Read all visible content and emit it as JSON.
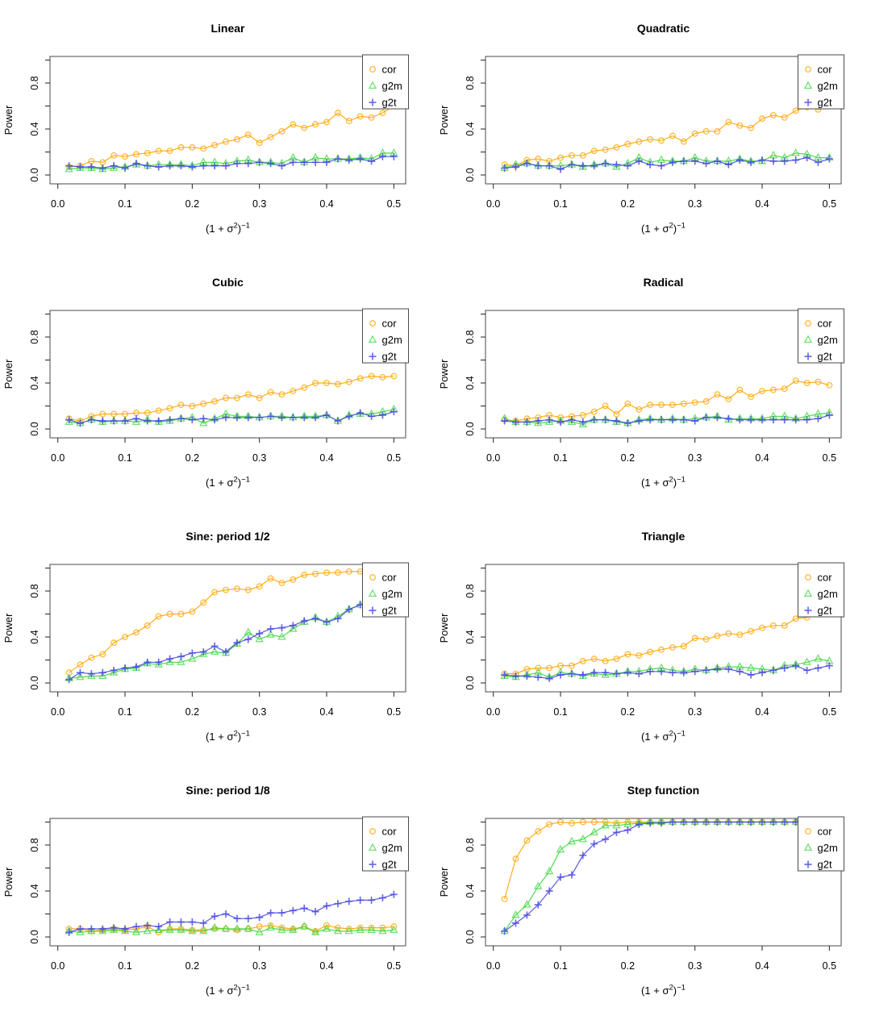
{
  "page": {
    "background": "#ffffff"
  },
  "chart_data": {
    "type": "line",
    "x_label": "(1 + σ²)⁻¹",
    "x_label_parts": [
      {
        "t": "(",
        "sup": false
      },
      {
        "t": "1",
        "sup": false
      },
      {
        "t": " + ",
        "sup": false
      },
      {
        "t": "σ",
        "sup": false
      },
      {
        "t": "2",
        "sup": true
      },
      {
        "t": ")",
        "sup": false
      },
      {
        "t": "−1",
        "sup": true
      }
    ],
    "y_label": "Power",
    "xlim": [
      0,
      0.5
    ],
    "ylim": [
      0,
      1
    ],
    "grid": false,
    "x_ticks": [
      {
        "v": 0.0,
        "label": "0.0"
      },
      {
        "v": 0.1,
        "label": "0.1"
      },
      {
        "v": 0.2,
        "label": "0.2"
      },
      {
        "v": 0.3,
        "label": "0.3"
      },
      {
        "v": 0.4,
        "label": "0.4"
      },
      {
        "v": 0.5,
        "label": "0.5"
      }
    ],
    "y_ticks": [
      {
        "v": 0.0,
        "label": "0.0"
      },
      {
        "v": 0.2,
        "label": ""
      },
      {
        "v": 0.4,
        "label": "0.4"
      },
      {
        "v": 0.6,
        "label": ""
      },
      {
        "v": 0.8,
        "label": "0.8"
      },
      {
        "v": 1.0,
        "label": ""
      }
    ],
    "legend": {
      "position": "top-right",
      "entries": [
        {
          "name": "cor",
          "marker": "circle",
          "color": "#ffa500"
        },
        {
          "name": "g2m",
          "marker": "triangle",
          "color": "#3bd53b"
        },
        {
          "name": "g2t",
          "marker": "plus",
          "color": "#4747e0"
        }
      ]
    },
    "x_values": [
      0.0167,
      0.0333,
      0.05,
      0.0667,
      0.0833,
      0.1,
      0.1167,
      0.1333,
      0.15,
      0.1667,
      0.1833,
      0.2,
      0.2167,
      0.2333,
      0.25,
      0.2667,
      0.2833,
      0.3,
      0.3167,
      0.3333,
      0.35,
      0.3667,
      0.3833,
      0.4,
      0.4167,
      0.4333,
      0.45,
      0.4667,
      0.4833,
      0.5
    ],
    "panels": [
      {
        "title": "Linear",
        "series": {
          "cor": [
            0.07,
            0.08,
            0.12,
            0.11,
            0.17,
            0.16,
            0.18,
            0.19,
            0.21,
            0.21,
            0.24,
            0.24,
            0.23,
            0.26,
            0.29,
            0.31,
            0.35,
            0.28,
            0.33,
            0.38,
            0.44,
            0.41,
            0.44,
            0.46,
            0.54,
            0.47,
            0.51,
            0.5,
            0.54,
            0.6
          ],
          "g2m": [
            0.05,
            0.06,
            0.06,
            0.05,
            0.06,
            0.07,
            0.09,
            0.08,
            0.09,
            0.09,
            0.09,
            0.08,
            0.11,
            0.11,
            0.1,
            0.12,
            0.13,
            0.11,
            0.11,
            0.1,
            0.15,
            0.11,
            0.15,
            0.14,
            0.14,
            0.14,
            0.15,
            0.14,
            0.19,
            0.19
          ],
          "g2t": [
            0.08,
            0.07,
            0.07,
            0.06,
            0.08,
            0.06,
            0.1,
            0.08,
            0.07,
            0.08,
            0.08,
            0.07,
            0.08,
            0.08,
            0.08,
            0.1,
            0.1,
            0.11,
            0.1,
            0.08,
            0.11,
            0.11,
            0.11,
            0.11,
            0.14,
            0.13,
            0.14,
            0.12,
            0.16,
            0.16
          ]
        }
      },
      {
        "title": "Quadratic",
        "series": {
          "cor": [
            0.09,
            0.08,
            0.13,
            0.14,
            0.12,
            0.15,
            0.17,
            0.17,
            0.21,
            0.22,
            0.24,
            0.27,
            0.29,
            0.31,
            0.3,
            0.34,
            0.29,
            0.36,
            0.38,
            0.38,
            0.46,
            0.43,
            0.41,
            0.49,
            0.52,
            0.5,
            0.56,
            0.59,
            0.57,
            0.6
          ],
          "g2m": [
            0.06,
            0.09,
            0.1,
            0.08,
            0.08,
            0.08,
            0.09,
            0.07,
            0.09,
            0.1,
            0.07,
            0.1,
            0.15,
            0.11,
            0.13,
            0.12,
            0.12,
            0.15,
            0.12,
            0.12,
            0.12,
            0.14,
            0.12,
            0.12,
            0.17,
            0.15,
            0.19,
            0.18,
            0.15,
            0.15
          ],
          "g2t": [
            0.06,
            0.07,
            0.1,
            0.08,
            0.08,
            0.05,
            0.09,
            0.08,
            0.08,
            0.1,
            0.09,
            0.08,
            0.12,
            0.09,
            0.08,
            0.11,
            0.12,
            0.12,
            0.1,
            0.12,
            0.09,
            0.13,
            0.11,
            0.13,
            0.12,
            0.12,
            0.13,
            0.15,
            0.11,
            0.14
          ]
        }
      },
      {
        "title": "Cubic",
        "series": {
          "cor": [
            0.09,
            0.07,
            0.11,
            0.13,
            0.13,
            0.13,
            0.14,
            0.14,
            0.16,
            0.18,
            0.21,
            0.2,
            0.22,
            0.24,
            0.27,
            0.27,
            0.3,
            0.27,
            0.32,
            0.3,
            0.33,
            0.36,
            0.4,
            0.4,
            0.39,
            0.41,
            0.44,
            0.46,
            0.45,
            0.46
          ],
          "g2m": [
            0.06,
            0.05,
            0.08,
            0.06,
            0.07,
            0.07,
            0.06,
            0.08,
            0.06,
            0.07,
            0.09,
            0.1,
            0.05,
            0.09,
            0.13,
            0.11,
            0.11,
            0.1,
            0.11,
            0.11,
            0.1,
            0.11,
            0.11,
            0.12,
            0.07,
            0.12,
            0.13,
            0.13,
            0.15,
            0.17
          ],
          "g2t": [
            0.08,
            0.05,
            0.08,
            0.07,
            0.07,
            0.07,
            0.09,
            0.07,
            0.07,
            0.08,
            0.09,
            0.08,
            0.09,
            0.08,
            0.1,
            0.1,
            0.1,
            0.1,
            0.11,
            0.1,
            0.1,
            0.1,
            0.1,
            0.12,
            0.07,
            0.11,
            0.14,
            0.11,
            0.12,
            0.15
          ]
        }
      },
      {
        "title": "Radical",
        "series": {
          "cor": [
            0.08,
            0.07,
            0.09,
            0.1,
            0.12,
            0.1,
            0.11,
            0.12,
            0.15,
            0.2,
            0.13,
            0.22,
            0.17,
            0.21,
            0.21,
            0.21,
            0.22,
            0.23,
            0.24,
            0.3,
            0.26,
            0.34,
            0.28,
            0.33,
            0.34,
            0.35,
            0.42,
            0.4,
            0.41,
            0.38
          ],
          "g2m": [
            0.09,
            0.06,
            0.06,
            0.05,
            0.06,
            0.07,
            0.06,
            0.04,
            0.08,
            0.08,
            0.06,
            0.05,
            0.08,
            0.09,
            0.08,
            0.09,
            0.08,
            0.09,
            0.1,
            0.11,
            0.08,
            0.09,
            0.09,
            0.09,
            0.11,
            0.11,
            0.09,
            0.11,
            0.13,
            0.14
          ],
          "g2t": [
            0.07,
            0.06,
            0.06,
            0.07,
            0.08,
            0.06,
            0.08,
            0.06,
            0.08,
            0.08,
            0.07,
            0.05,
            0.07,
            0.08,
            0.08,
            0.08,
            0.08,
            0.07,
            0.1,
            0.1,
            0.09,
            0.08,
            0.08,
            0.08,
            0.08,
            0.08,
            0.08,
            0.08,
            0.09,
            0.12
          ]
        }
      },
      {
        "title": "Sine: period 1/2",
        "series": {
          "cor": [
            0.09,
            0.16,
            0.22,
            0.25,
            0.35,
            0.4,
            0.44,
            0.5,
            0.58,
            0.6,
            0.6,
            0.62,
            0.7,
            0.79,
            0.81,
            0.82,
            0.81,
            0.84,
            0.91,
            0.87,
            0.9,
            0.94,
            0.95,
            0.96,
            0.96,
            0.97,
            0.97,
            0.97,
            0.97,
            0.97
          ],
          "g2m": [
            0.04,
            0.05,
            0.06,
            0.06,
            0.09,
            0.12,
            0.13,
            0.17,
            0.16,
            0.18,
            0.18,
            0.21,
            0.25,
            0.27,
            0.26,
            0.34,
            0.44,
            0.38,
            0.42,
            0.4,
            0.47,
            0.53,
            0.57,
            0.53,
            0.58,
            0.64,
            0.68,
            0.7,
            0.71,
            0.72
          ],
          "g2t": [
            0.03,
            0.09,
            0.08,
            0.09,
            0.11,
            0.13,
            0.14,
            0.18,
            0.18,
            0.21,
            0.23,
            0.26,
            0.27,
            0.32,
            0.27,
            0.35,
            0.38,
            0.43,
            0.47,
            0.48,
            0.5,
            0.54,
            0.56,
            0.53,
            0.56,
            0.64,
            0.68,
            0.69,
            0.71,
            0.72
          ]
        }
      },
      {
        "title": "Triangle",
        "series": {
          "cor": [
            0.08,
            0.08,
            0.12,
            0.13,
            0.13,
            0.15,
            0.15,
            0.19,
            0.21,
            0.19,
            0.21,
            0.25,
            0.24,
            0.27,
            0.29,
            0.31,
            0.32,
            0.39,
            0.38,
            0.41,
            0.43,
            0.42,
            0.45,
            0.48,
            0.5,
            0.5,
            0.56,
            0.57,
            0.6,
            0.62
          ],
          "g2m": [
            0.06,
            0.05,
            0.07,
            0.09,
            0.05,
            0.09,
            0.08,
            0.06,
            0.08,
            0.07,
            0.08,
            0.1,
            0.1,
            0.12,
            0.13,
            0.11,
            0.1,
            0.12,
            0.11,
            0.13,
            0.14,
            0.14,
            0.13,
            0.12,
            0.11,
            0.15,
            0.16,
            0.18,
            0.21,
            0.19
          ],
          "g2t": [
            0.07,
            0.06,
            0.06,
            0.05,
            0.04,
            0.07,
            0.08,
            0.07,
            0.09,
            0.09,
            0.08,
            0.09,
            0.08,
            0.1,
            0.1,
            0.09,
            0.09,
            0.1,
            0.11,
            0.12,
            0.12,
            0.1,
            0.07,
            0.09,
            0.11,
            0.13,
            0.15,
            0.11,
            0.13,
            0.15
          ]
        }
      },
      {
        "title": "Sine: period 1/8",
        "series": {
          "cor": [
            0.07,
            0.07,
            0.05,
            0.06,
            0.07,
            0.06,
            0.07,
            0.09,
            0.04,
            0.07,
            0.07,
            0.06,
            0.06,
            0.07,
            0.07,
            0.06,
            0.07,
            0.09,
            0.1,
            0.08,
            0.07,
            0.09,
            0.05,
            0.1,
            0.08,
            0.07,
            0.08,
            0.08,
            0.08,
            0.09
          ],
          "g2m": [
            0.05,
            0.04,
            0.05,
            0.05,
            0.06,
            0.05,
            0.04,
            0.05,
            0.06,
            0.06,
            0.06,
            0.05,
            0.05,
            0.08,
            0.07,
            0.07,
            0.07,
            0.04,
            0.08,
            0.06,
            0.06,
            0.09,
            0.04,
            0.07,
            0.05,
            0.05,
            0.06,
            0.06,
            0.05,
            0.06
          ],
          "g2t": [
            0.04,
            0.07,
            0.07,
            0.07,
            0.08,
            0.07,
            0.09,
            0.1,
            0.09,
            0.13,
            0.13,
            0.13,
            0.12,
            0.18,
            0.2,
            0.16,
            0.16,
            0.17,
            0.21,
            0.21,
            0.23,
            0.25,
            0.22,
            0.27,
            0.29,
            0.31,
            0.32,
            0.32,
            0.34,
            0.37
          ]
        }
      },
      {
        "title": "Step function",
        "series": {
          "cor": [
            0.33,
            0.68,
            0.84,
            0.92,
            0.98,
            1.0,
            0.99,
            1.0,
            1.0,
            1.0,
            0.99,
            1.0,
            1.0,
            1.0,
            1.0,
            1.0,
            1.0,
            1.0,
            1.0,
            1.0,
            1.0,
            1.0,
            1.0,
            1.0,
            1.0,
            1.0,
            1.0,
            1.0,
            1.0,
            1.0
          ],
          "g2m": [
            0.05,
            0.19,
            0.28,
            0.44,
            0.57,
            0.76,
            0.83,
            0.85,
            0.91,
            0.97,
            0.97,
            0.98,
            0.99,
            1.0,
            1.0,
            1.0,
            1.0,
            1.0,
            1.0,
            1.0,
            1.0,
            1.0,
            1.0,
            1.0,
            1.0,
            1.0,
            1.0,
            1.0,
            1.0,
            1.0
          ],
          "g2t": [
            0.05,
            0.12,
            0.19,
            0.28,
            0.4,
            0.52,
            0.54,
            0.71,
            0.81,
            0.85,
            0.91,
            0.93,
            0.98,
            0.99,
            0.99,
            1.0,
            1.0,
            1.0,
            1.0,
            1.0,
            1.0,
            1.0,
            1.0,
            1.0,
            1.0,
            1.0,
            1.0,
            1.0,
            1.0,
            1.0
          ]
        }
      }
    ]
  }
}
